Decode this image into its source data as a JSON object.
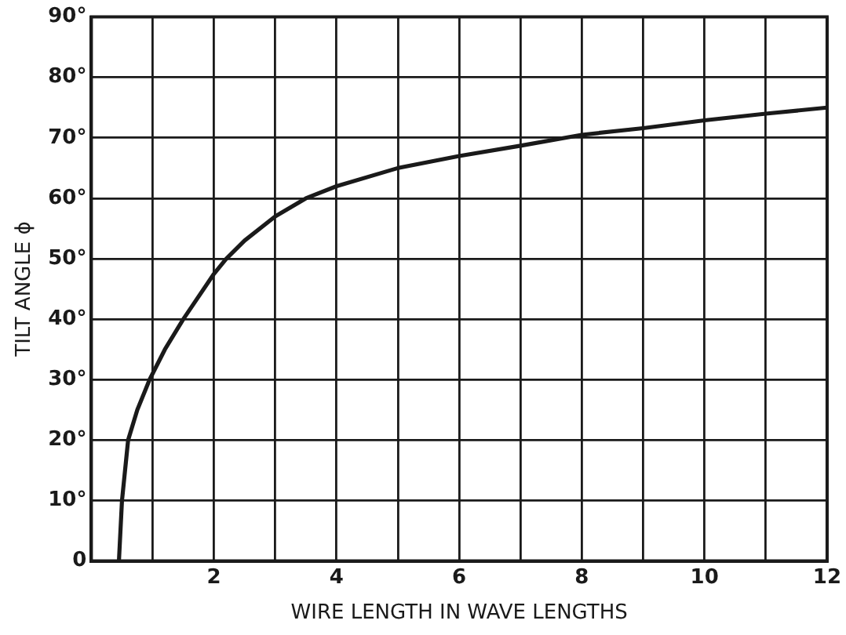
{
  "chart_data": {
    "type": "line",
    "xlabel": "WIRE LENGTH IN WAVE LENGTHS",
    "ylabel": "TILT ANGLE ϕ",
    "x": [
      0.45,
      0.5,
      0.6,
      0.75,
      0.95,
      1.2,
      1.5,
      2,
      2.2,
      2.5,
      3,
      3.5,
      4,
      5,
      6,
      7,
      8,
      9,
      10,
      11,
      12
    ],
    "series": [
      {
        "color": "#1a1a1a",
        "values": [
          0,
          10,
          20,
          25,
          30,
          35,
          40,
          47.5,
          50,
          53,
          57,
          60,
          62,
          65,
          67,
          68.7,
          70.5,
          71.6,
          72.9,
          74,
          75
        ]
      }
    ],
    "xlim": [
      0,
      12
    ],
    "ylim": [
      0,
      90
    ],
    "xticks": [
      {
        "value": 0,
        "label": null
      },
      {
        "value": 1,
        "label": null
      },
      2,
      {
        "value": 3,
        "label": null
      },
      4,
      {
        "value": 5,
        "label": null
      },
      6,
      {
        "value": 7,
        "label": null
      },
      8,
      {
        "value": 9,
        "label": null
      },
      10,
      {
        "value": 11,
        "label": null
      },
      12
    ],
    "yticks": [
      0,
      {
        "value": 10,
        "label": "10°"
      },
      {
        "value": 20,
        "label": "20°"
      },
      {
        "value": 30,
        "label": "30°"
      },
      {
        "value": 40,
        "label": "40°"
      },
      {
        "value": 50,
        "label": "50°"
      },
      {
        "value": 60,
        "label": "60°"
      },
      {
        "value": 70,
        "label": "70°"
      },
      {
        "value": 80,
        "label": "80°"
      },
      {
        "value": 90,
        "label": "90°"
      }
    ],
    "grid": true,
    "legend": false,
    "marker": "none",
    "line_style": "solid"
  }
}
